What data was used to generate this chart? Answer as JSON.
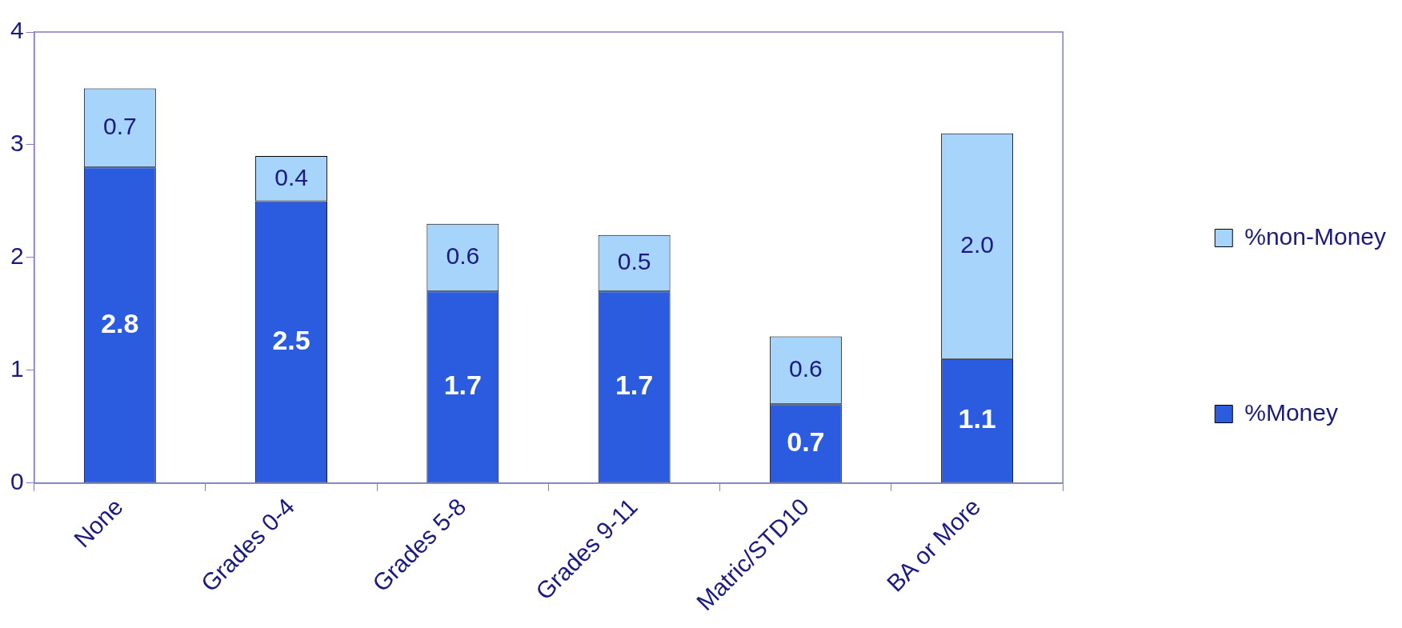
{
  "chart_data": {
    "type": "bar",
    "stacked": true,
    "categories": [
      "None",
      "Grades 0-4",
      "Grades 5-8",
      "Grades 9-11",
      "Matric/STD10",
      "BA or More"
    ],
    "series": [
      {
        "name": "%Money",
        "color": "#2b5ce0",
        "values": [
          2.8,
          2.5,
          1.7,
          1.7,
          0.7,
          1.1
        ],
        "value_labels": [
          "2.8",
          "2.5",
          "1.7",
          "1.7",
          "0.7",
          "1.1"
        ]
      },
      {
        "name": "%non-Money",
        "color": "#a6d4fa",
        "values": [
          0.7,
          0.4,
          0.6,
          0.5,
          0.6,
          2.0
        ],
        "value_labels": [
          "0.7",
          "0.4",
          "0.6",
          "0.5",
          "0.6",
          "2.0"
        ]
      }
    ],
    "ylim": [
      0,
      4
    ],
    "yticks": [
      0,
      1,
      2,
      3,
      4
    ],
    "grid": false,
    "legend": "right"
  }
}
